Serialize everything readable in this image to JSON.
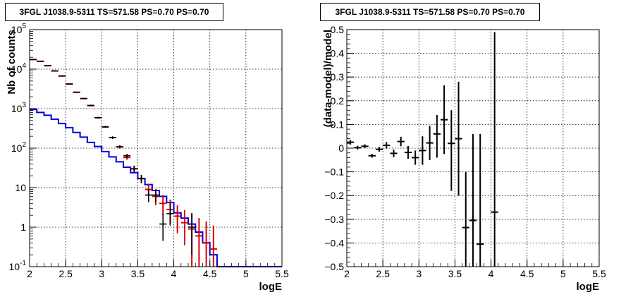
{
  "chart_data": [
    {
      "type": "scatter",
      "title": "3FGL J1038.9-5311 TS=571.58 PS=0.70 PS=0.70",
      "xlabel": "logE",
      "ylabel": "Nb of counts",
      "xlim": [
        2,
        5.5
      ],
      "ylim": [
        0.1,
        100000
      ],
      "yscale": "log",
      "grid": true,
      "x_ticks": [
        {
          "v": 2,
          "label": "2"
        },
        {
          "v": 2.5,
          "label": "2.5"
        },
        {
          "v": 3,
          "label": "3"
        },
        {
          "v": 3.5,
          "label": "3.5"
        },
        {
          "v": 4,
          "label": "4"
        },
        {
          "v": 4.5,
          "label": "4.5"
        },
        {
          "v": 5,
          "label": "5"
        },
        {
          "v": 5.5,
          "label": "5.5"
        }
      ],
      "y_ticks": [
        {
          "v": 0.1,
          "base": "10",
          "exp": "-1"
        },
        {
          "v": 1,
          "base": "1",
          "exp": ""
        },
        {
          "v": 10,
          "base": "10",
          "exp": ""
        },
        {
          "v": 100,
          "base": "10",
          "exp": "2"
        },
        {
          "v": 1000,
          "base": "10",
          "exp": "3"
        },
        {
          "v": 10000,
          "base": "10",
          "exp": "4"
        },
        {
          "v": 100000,
          "base": "10",
          "exp": "5"
        }
      ],
      "colors": {
        "data": "#000000",
        "total_model": "#dd0000",
        "source_model": "#0000dd"
      },
      "series": [
        {
          "kind": "data_points",
          "points": [
            {
              "x": 2.05,
              "y": 17500,
              "lo": 17300,
              "hi": 17700
            },
            {
              "x": 2.15,
              "y": 15800,
              "lo": 15600,
              "hi": 16000
            },
            {
              "x": 2.25,
              "y": 12200,
              "lo": 12000,
              "hi": 12400
            },
            {
              "x": 2.35,
              "y": 9000,
              "lo": 8850,
              "hi": 9150
            },
            {
              "x": 2.45,
              "y": 6700,
              "lo": 6570,
              "hi": 6830
            },
            {
              "x": 2.55,
              "y": 4200,
              "lo": 4100,
              "hi": 4300
            },
            {
              "x": 2.65,
              "y": 2600,
              "lo": 2520,
              "hi": 2680
            },
            {
              "x": 2.75,
              "y": 1800,
              "lo": 1740,
              "hi": 1860
            },
            {
              "x": 2.85,
              "y": 1200,
              "lo": 1150,
              "hi": 1250
            },
            {
              "x": 2.95,
              "y": 590,
              "lo": 565,
              "hi": 615
            },
            {
              "x": 3.05,
              "y": 345,
              "lo": 326,
              "hi": 364
            },
            {
              "x": 3.15,
              "y": 185,
              "lo": 171,
              "hi": 199
            },
            {
              "x": 3.25,
              "y": 108,
              "lo": 98,
              "hi": 118
            },
            {
              "x": 3.35,
              "y": 64,
              "lo": 56,
              "hi": 72
            },
            {
              "x": 3.45,
              "y": 30,
              "lo": 25,
              "hi": 36
            },
            {
              "x": 3.55,
              "y": 17,
              "lo": 13,
              "hi": 21
            },
            {
              "x": 3.65,
              "y": 6.5,
              "lo": 4.3,
              "hi": 9
            },
            {
              "x": 3.75,
              "y": 6.5,
              "lo": 4.3,
              "hi": 9
            },
            {
              "x": 3.85,
              "y": 1.2,
              "lo": 0.45,
              "hi": 2.2
            },
            {
              "x": 3.95,
              "y": 2.2,
              "lo": 1.1,
              "hi": 4
            },
            {
              "x": 4.25,
              "y": 1,
              "lo": 0.2,
              "hi": 2.3
            }
          ]
        },
        {
          "kind": "total_model",
          "points": [
            {
              "x": 2.05,
              "y": 17500,
              "lo": 17000,
              "hi": 18000
            },
            {
              "x": 2.15,
              "y": 15800,
              "lo": 15300,
              "hi": 16300
            },
            {
              "x": 2.25,
              "y": 12200,
              "lo": 11800,
              "hi": 12600
            },
            {
              "x": 2.35,
              "y": 9000,
              "lo": 8700,
              "hi": 9300
            },
            {
              "x": 2.45,
              "y": 6700,
              "lo": 6450,
              "hi": 6950
            },
            {
              "x": 2.55,
              "y": 4200,
              "lo": 4050,
              "hi": 4350
            },
            {
              "x": 2.65,
              "y": 2600,
              "lo": 2500,
              "hi": 2700
            },
            {
              "x": 2.75,
              "y": 1800,
              "lo": 1720,
              "hi": 1880
            },
            {
              "x": 2.85,
              "y": 1200,
              "lo": 1140,
              "hi": 1260
            },
            {
              "x": 2.95,
              "y": 590,
              "lo": 560,
              "hi": 620
            },
            {
              "x": 3.05,
              "y": 345,
              "lo": 325,
              "hi": 365
            },
            {
              "x": 3.15,
              "y": 185,
              "lo": 172,
              "hi": 198
            },
            {
              "x": 3.25,
              "y": 108,
              "lo": 98,
              "hi": 118
            },
            {
              "x": 3.35,
              "y": 58,
              "lo": 51,
              "hi": 65
            },
            {
              "x": 3.45,
              "y": 30,
              "lo": 25,
              "hi": 36
            },
            {
              "x": 3.55,
              "y": 17,
              "lo": 13,
              "hi": 21
            },
            {
              "x": 3.65,
              "y": 9,
              "lo": 6.2,
              "hi": 12.5
            },
            {
              "x": 3.75,
              "y": 6,
              "lo": 3.6,
              "hi": 9.2
            },
            {
              "x": 3.85,
              "y": 4,
              "lo": 2,
              "hi": 6.5
            },
            {
              "x": 3.95,
              "y": 2.8,
              "lo": 1.2,
              "hi": 5
            },
            {
              "x": 4.05,
              "y": 1.9,
              "lo": 0.7,
              "hi": 3.6
            },
            {
              "x": 4.15,
              "y": 1.3,
              "lo": 0.35,
              "hi": 2.7
            },
            {
              "x": 4.25,
              "y": 0.9,
              "lo": 0.1,
              "hi": 2.2
            },
            {
              "x": 4.35,
              "y": 0.6,
              "lo": 0.1,
              "hi": 1.7
            },
            {
              "x": 4.45,
              "y": 0.4,
              "lo": 0.1,
              "hi": 1.4
            },
            {
              "x": 4.55,
              "y": 0.28,
              "lo": 0.1,
              "hi": 1.1
            }
          ]
        },
        {
          "kind": "source_model",
          "bins": [
            {
              "x0": 2.0,
              "y": 950
            },
            {
              "x0": 2.1,
              "y": 800
            },
            {
              "x0": 2.2,
              "y": 680
            },
            {
              "x0": 2.3,
              "y": 540
            },
            {
              "x0": 2.4,
              "y": 420
            },
            {
              "x0": 2.5,
              "y": 330
            },
            {
              "x0": 2.6,
              "y": 250
            },
            {
              "x0": 2.7,
              "y": 190
            },
            {
              "x0": 2.8,
              "y": 140
            },
            {
              "x0": 2.9,
              "y": 110
            },
            {
              "x0": 3.0,
              "y": 82
            },
            {
              "x0": 3.1,
              "y": 60
            },
            {
              "x0": 3.2,
              "y": 45
            },
            {
              "x0": 3.3,
              "y": 33
            },
            {
              "x0": 3.4,
              "y": 24
            },
            {
              "x0": 3.5,
              "y": 17
            },
            {
              "x0": 3.6,
              "y": 12
            },
            {
              "x0": 3.7,
              "y": 8.5
            },
            {
              "x0": 3.8,
              "y": 6
            },
            {
              "x0": 3.9,
              "y": 4.2
            },
            {
              "x0": 4.0,
              "y": 2.3
            },
            {
              "x0": 4.1,
              "y": 1.7
            },
            {
              "x0": 4.2,
              "y": 1.2
            },
            {
              "x0": 4.3,
              "y": 0.75
            },
            {
              "x0": 4.4,
              "y": 0.4
            },
            {
              "x0": 4.5,
              "y": 0.2
            },
            {
              "x0": 4.6,
              "y": 0.1
            }
          ],
          "x_end": 5.5
        }
      ]
    },
    {
      "type": "scatter",
      "title": "3FGL J1038.9-5311 TS=571.58 PS=0.70 PS=0.70",
      "xlabel": "logE",
      "ylabel": "(data-model)/model",
      "xlim": [
        2,
        5.5
      ],
      "ylim": [
        -0.5,
        0.5
      ],
      "grid": true,
      "x_ticks": [
        {
          "v": 2,
          "label": "2"
        },
        {
          "v": 2.5,
          "label": "2.5"
        },
        {
          "v": 3,
          "label": "3"
        },
        {
          "v": 3.5,
          "label": "3.5"
        },
        {
          "v": 4,
          "label": "4"
        },
        {
          "v": 4.5,
          "label": "4.5"
        },
        {
          "v": 5,
          "label": "5"
        },
        {
          "v": 5.5,
          "label": "5.5"
        }
      ],
      "y_ticks": [
        {
          "v": -0.5,
          "label": "−0.5"
        },
        {
          "v": -0.4,
          "label": "−0.4"
        },
        {
          "v": -0.3,
          "label": "−0.3"
        },
        {
          "v": -0.2,
          "label": "−0.2"
        },
        {
          "v": -0.1,
          "label": "−0.1"
        },
        {
          "v": 0,
          "label": "0"
        },
        {
          "v": 0.1,
          "label": "0.1"
        },
        {
          "v": 0.2,
          "label": "0.2"
        },
        {
          "v": 0.3,
          "label": "0.3"
        },
        {
          "v": 0.4,
          "label": "0.4"
        },
        {
          "v": 0.5,
          "label": "0.5"
        }
      ],
      "colors": {
        "data": "#000000"
      },
      "series": [
        {
          "kind": "residuals",
          "points": [
            {
              "x": 2.05,
              "y": 0.025,
              "lo": 0.015,
              "hi": 0.035
            },
            {
              "x": 2.15,
              "y": 0.002,
              "lo": -0.006,
              "hi": 0.01
            },
            {
              "x": 2.25,
              "y": 0.008,
              "lo": 0.0,
              "hi": 0.016
            },
            {
              "x": 2.35,
              "y": -0.032,
              "lo": -0.04,
              "hi": -0.024
            },
            {
              "x": 2.45,
              "y": -0.005,
              "lo": -0.015,
              "hi": 0.005
            },
            {
              "x": 2.55,
              "y": 0.012,
              "lo": -0.002,
              "hi": 0.026
            },
            {
              "x": 2.65,
              "y": -0.022,
              "lo": -0.038,
              "hi": -0.006
            },
            {
              "x": 2.75,
              "y": 0.028,
              "lo": 0.008,
              "hi": 0.048
            },
            {
              "x": 2.85,
              "y": -0.018,
              "lo": -0.045,
              "hi": 0.009
            },
            {
              "x": 2.95,
              "y": -0.04,
              "lo": -0.07,
              "hi": -0.01
            },
            {
              "x": 3.05,
              "y": -0.01,
              "lo": -0.07,
              "hi": 0.05
            },
            {
              "x": 3.15,
              "y": 0.022,
              "lo": -0.05,
              "hi": 0.094
            },
            {
              "x": 3.25,
              "y": 0.06,
              "lo": -0.04,
              "hi": 0.14
            },
            {
              "x": 3.35,
              "y": 0.12,
              "lo": -0.025,
              "hi": 0.265
            },
            {
              "x": 3.45,
              "y": 0.02,
              "lo": -0.18,
              "hi": 0.16
            },
            {
              "x": 3.55,
              "y": 0.04,
              "lo": -0.2,
              "hi": 0.28
            },
            {
              "x": 3.65,
              "y": -0.335,
              "lo": -0.5,
              "hi": -0.1
            },
            {
              "x": 3.75,
              "y": -0.305,
              "lo": -0.5,
              "hi": 0.06
            },
            {
              "x": 3.85,
              "y": -0.405,
              "lo": -0.5,
              "hi": 0.06
            },
            {
              "x": 4.05,
              "y": -0.27,
              "lo": -0.5,
              "hi": 0.49
            }
          ]
        }
      ]
    }
  ]
}
